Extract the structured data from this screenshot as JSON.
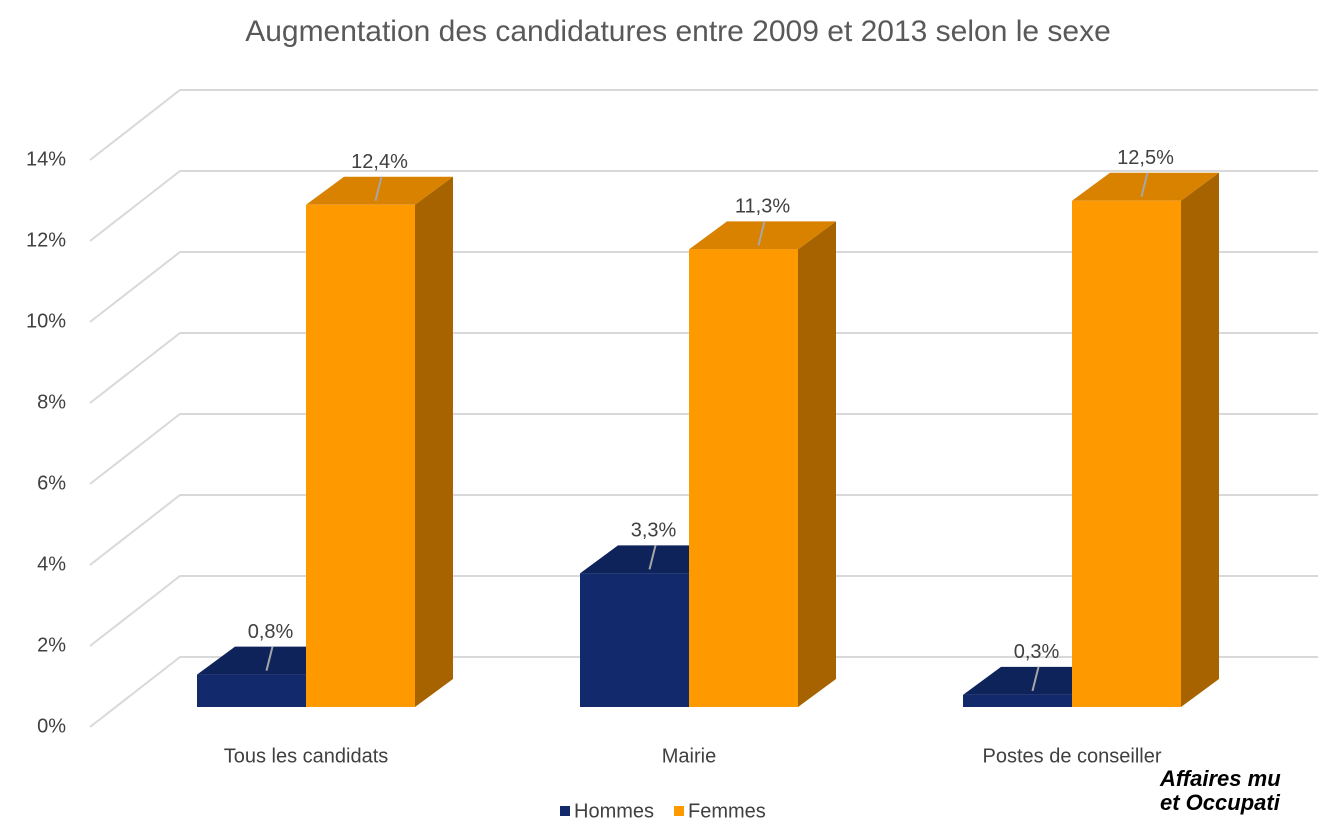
{
  "chart_data": {
    "type": "bar3d",
    "title": "Augmentation des candidatures entre 2009 et 2013 selon le sexe",
    "categories": [
      "Tous les candidats",
      "Mairie",
      "Postes de conseiller"
    ],
    "series": [
      {
        "name": "Hommes",
        "color": "#12296b",
        "values": [
          0.8,
          3.3,
          0.3
        ],
        "value_labels": [
          "0,8%",
          "3,3%",
          "0,3%"
        ]
      },
      {
        "name": "Femmes",
        "color": "#ff9900",
        "values": [
          12.4,
          11.3,
          12.5
        ],
        "value_labels": [
          "12,4%",
          "11,3%",
          "12,5%"
        ]
      }
    ],
    "ylim": [
      0,
      14
    ],
    "yticks": [
      {
        "value": 0,
        "label": "0%"
      },
      {
        "value": 2,
        "label": "2%"
      },
      {
        "value": 4,
        "label": "4%"
      },
      {
        "value": 6,
        "label": "6%"
      },
      {
        "value": 8,
        "label": "8%"
      },
      {
        "value": 10,
        "label": "10%"
      },
      {
        "value": 12,
        "label": "12%"
      },
      {
        "value": 14,
        "label": "14%"
      }
    ],
    "grid": true,
    "legend": "bottom",
    "annotations": [
      "Affaires mu",
      "et Occupati"
    ]
  }
}
